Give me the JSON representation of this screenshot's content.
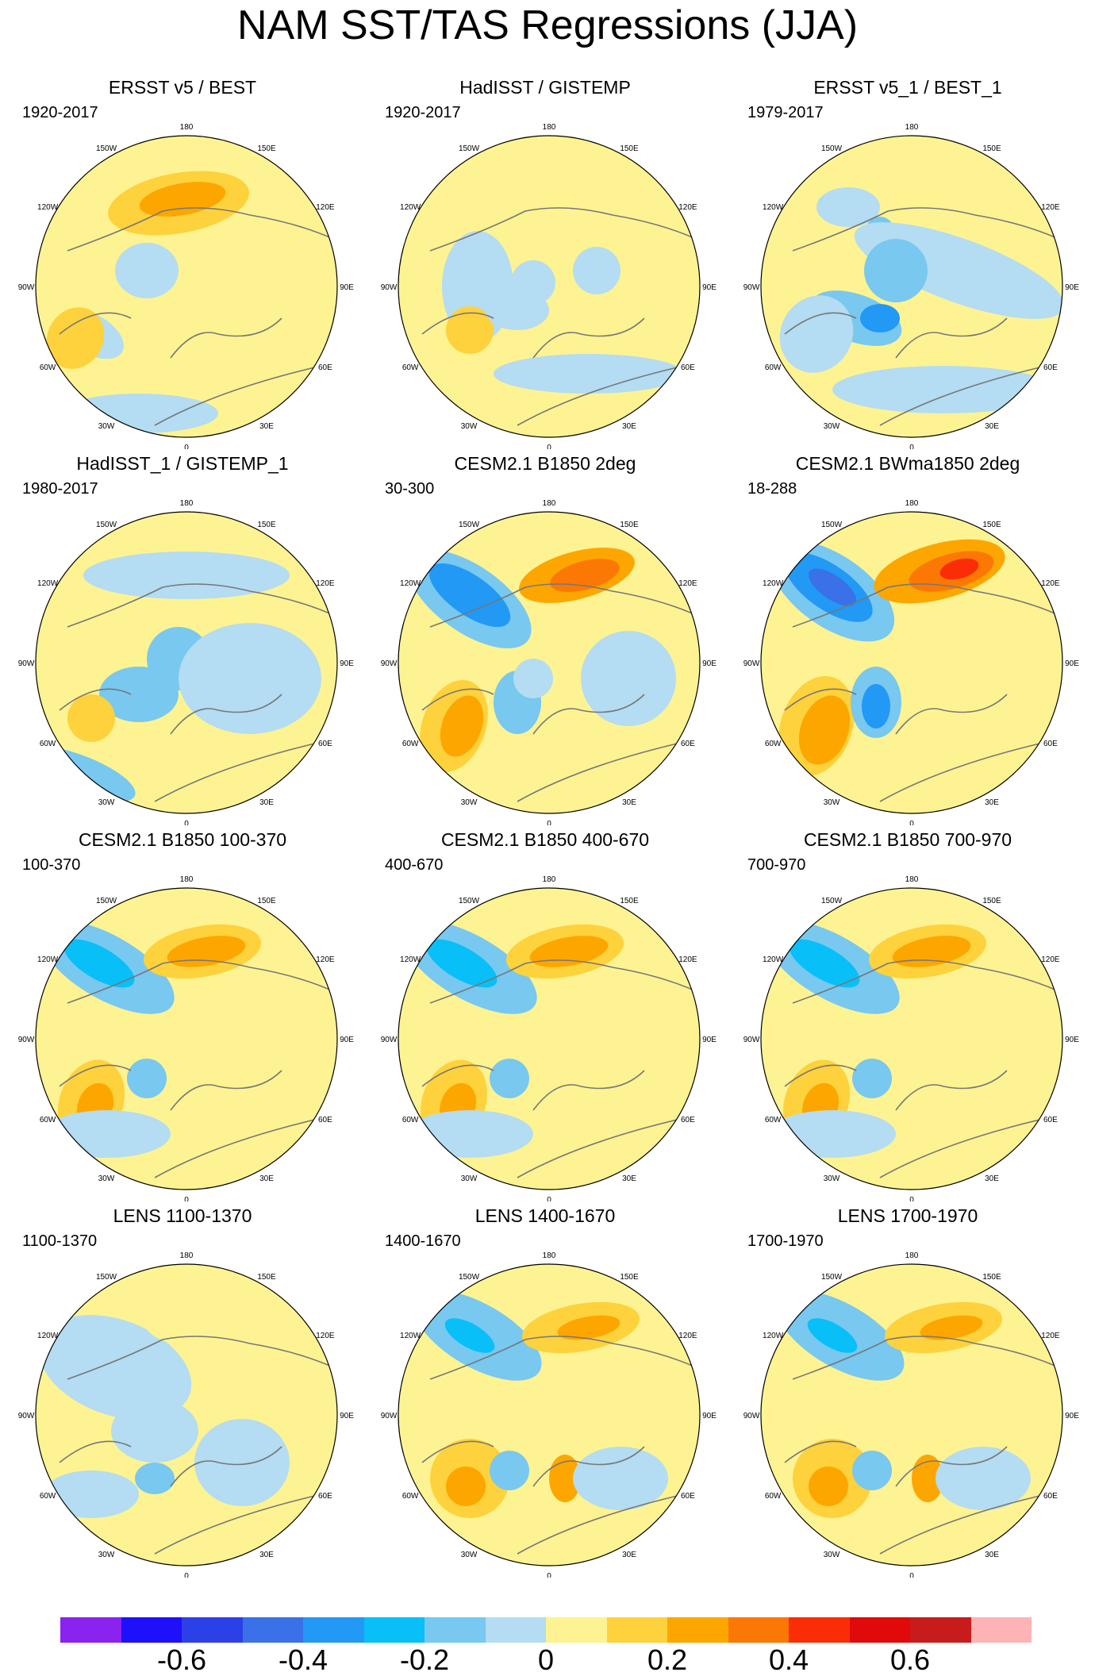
{
  "title": "NAM SST/TAS Regressions (JJA)",
  "lon_labels": [
    "180",
    "150E",
    "120E",
    "90E",
    "60E",
    "30E",
    "0",
    "30W",
    "60W",
    "90W",
    "120W",
    "150W"
  ],
  "panels": [
    {
      "title": "ERSST v5 / BEST",
      "period": "1920-2017",
      "pattern": "obs"
    },
    {
      "title": "HadISST / GISTEMP",
      "period": "1920-2017",
      "pattern": "obs2"
    },
    {
      "title": "ERSST v5_1 / BEST_1",
      "period": "1979-2017",
      "pattern": "obs3"
    },
    {
      "title": "HadISST_1 / GISTEMP_1",
      "period": "1980-2017",
      "pattern": "obs4"
    },
    {
      "title": "CESM2.1 B1850 2deg",
      "period": "30-300",
      "pattern": "model_strong"
    },
    {
      "title": "CESM2.1 BWma1850 2deg",
      "period": "18-288",
      "pattern": "model_strongest"
    },
    {
      "title": "CESM2.1 B1850 100-370",
      "period": "100-370",
      "pattern": "model"
    },
    {
      "title": "CESM2.1 B1850 400-670",
      "period": "400-670",
      "pattern": "model"
    },
    {
      "title": "CESM2.1 B1850 700-970",
      "period": "700-970",
      "pattern": "model"
    },
    {
      "title": "LENS 1100-1370",
      "period": "1100-1370",
      "pattern": "lens_weak"
    },
    {
      "title": "LENS 1400-1670",
      "period": "1400-1670",
      "pattern": "lens"
    },
    {
      "title": "LENS 1700-1970",
      "period": "1700-1970",
      "pattern": "lens"
    }
  ],
  "colorbar": {
    "colors": [
      "#8a22f0",
      "#1e10fa",
      "#2c40e8",
      "#3a70e8",
      "#2299f5",
      "#08bff8",
      "#78c8f0",
      "#b4dcf2",
      "#fef392",
      "#fed23c",
      "#fda600",
      "#fc7804",
      "#fb2d06",
      "#e10a0a",
      "#c81c1c",
      "#feb4b4"
    ],
    "tick_labels": [
      "-0.6",
      "-0.4",
      "-0.2",
      "0",
      "0.2",
      "0.4",
      "0.6"
    ],
    "tick_values": [
      -0.6,
      -0.4,
      -0.2,
      0,
      0.2,
      0.4,
      0.6
    ],
    "min": -0.8,
    "max": 0.8
  }
}
